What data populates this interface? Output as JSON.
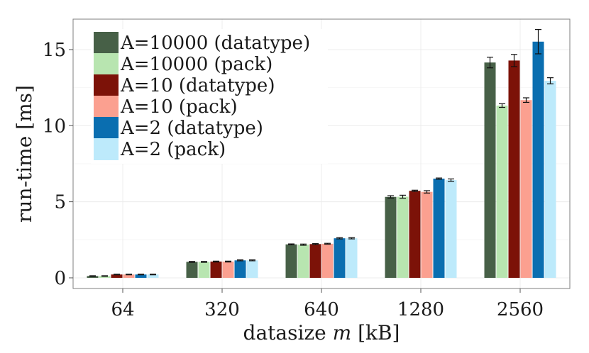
{
  "chart_data": {
    "type": "bar",
    "title": "",
    "xlabel": "datasize m [kB]",
    "xlabel_parts": {
      "prefix": "datasize ",
      "var": "m",
      "suffix": " [kB]"
    },
    "ylabel": "run-time [ms]",
    "ylim": [
      -0.7,
      17
    ],
    "yticks": [
      "0",
      "5",
      "10",
      "15"
    ],
    "grid": true,
    "legend_position": "top-left",
    "categories": [
      "64",
      "320",
      "640",
      "1280",
      "2560"
    ],
    "series": [
      {
        "name": "A=10000 (datatype)",
        "color": "#476047",
        "values": [
          0.12,
          1.05,
          2.2,
          5.32,
          14.15
        ],
        "errors": [
          0.02,
          0.03,
          0.03,
          0.08,
          0.35
        ]
      },
      {
        "name": "A=10000 (pack)",
        "color": "#b8e5b0",
        "values": [
          0.12,
          1.05,
          2.18,
          5.33,
          11.32
        ],
        "errors": [
          0.02,
          0.03,
          0.04,
          0.1,
          0.12
        ]
      },
      {
        "name": "A=10 (datatype)",
        "color": "#7c1208",
        "values": [
          0.22,
          1.07,
          2.22,
          5.72,
          14.28
        ],
        "errors": [
          0.02,
          0.03,
          0.03,
          0.04,
          0.4
        ]
      },
      {
        "name": "A=10 (pack)",
        "color": "#fba090",
        "values": [
          0.22,
          1.07,
          2.24,
          5.65,
          11.68
        ],
        "errors": [
          0.02,
          0.03,
          0.03,
          0.08,
          0.15
        ]
      },
      {
        "name": "A=2 (datatype)",
        "color": "#0a6eb0",
        "values": [
          0.22,
          1.15,
          2.6,
          6.52,
          15.52
        ],
        "errors": [
          0.02,
          0.03,
          0.04,
          0.04,
          0.8
        ]
      },
      {
        "name": "A=2 (pack)",
        "color": "#bdeafb",
        "values": [
          0.22,
          1.15,
          2.6,
          6.42,
          12.95
        ],
        "errors": [
          0.02,
          0.03,
          0.04,
          0.08,
          0.2
        ]
      }
    ]
  }
}
